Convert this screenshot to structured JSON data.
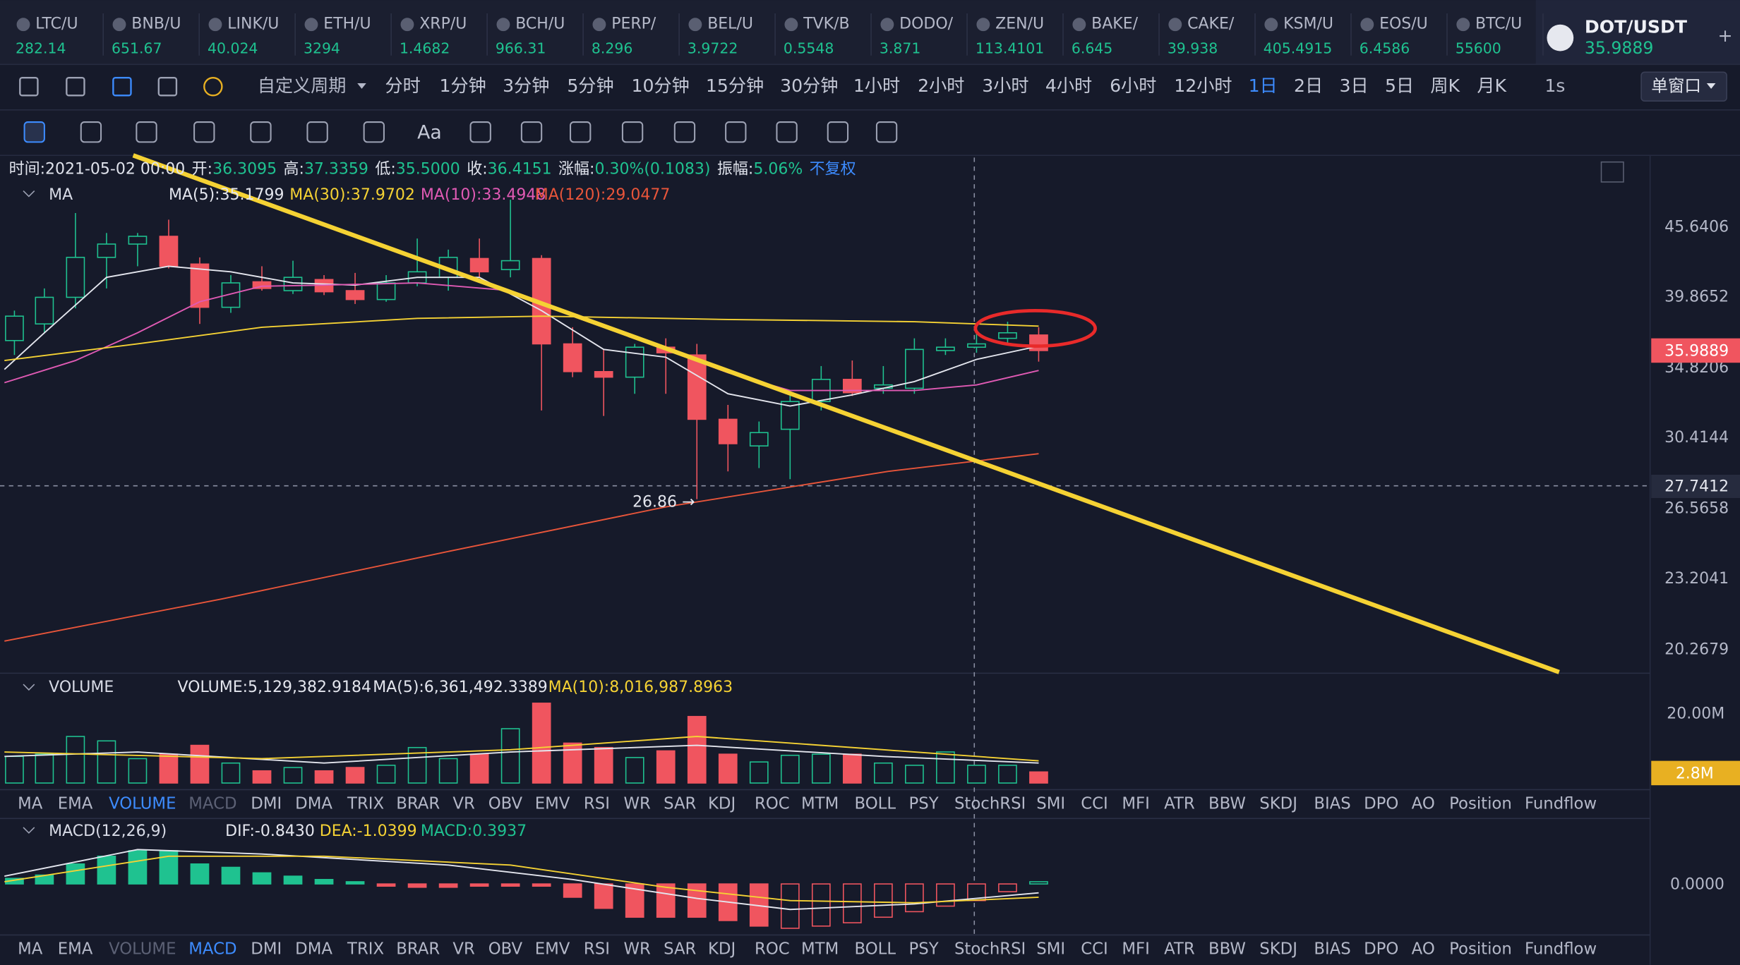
{
  "header": {
    "symbol": "DOT/USDT",
    "price": "35.9889"
  },
  "tickers": [
    {
      "name": "LTC/U",
      "price": "282.14"
    },
    {
      "name": "BNB/U",
      "price": "651.67"
    },
    {
      "name": "LINK/U",
      "price": "40.024"
    },
    {
      "name": "ETH/U",
      "price": "3294"
    },
    {
      "name": "XRP/U",
      "price": "1.4682"
    },
    {
      "name": "BCH/U",
      "price": "966.31"
    },
    {
      "name": "PERP/",
      "price": "8.296"
    },
    {
      "name": "BEL/U",
      "price": "3.9722"
    },
    {
      "name": "TVK/B",
      "price": "0.5548"
    },
    {
      "name": "DODO/",
      "price": "3.871"
    },
    {
      "name": "ZEN/U",
      "price": "113.4101"
    },
    {
      "name": "BAKE/",
      "price": "6.645"
    },
    {
      "name": "CAKE/",
      "price": "39.938"
    },
    {
      "name": "KSM/U",
      "price": "405.4915"
    },
    {
      "name": "EOS/U",
      "price": "6.4586"
    },
    {
      "name": "BTC/U",
      "price": "55600"
    }
  ],
  "timeframes": {
    "custom": "自定义周期",
    "items": [
      {
        "label": "分时"
      },
      {
        "label": "1分钟"
      },
      {
        "label": "3分钟"
      },
      {
        "label": "5分钟"
      },
      {
        "label": "10分钟"
      },
      {
        "label": "15分钟"
      },
      {
        "label": "30分钟"
      },
      {
        "label": "1小时"
      },
      {
        "label": "2小时"
      },
      {
        "label": "3小时"
      },
      {
        "label": "4小时"
      },
      {
        "label": "6小时"
      },
      {
        "label": "12小时"
      },
      {
        "label": "1日",
        "active": true
      },
      {
        "label": "2日"
      },
      {
        "label": "3日"
      },
      {
        "label": "5日"
      },
      {
        "label": "周K"
      },
      {
        "label": "月K"
      }
    ],
    "refresh": "1s",
    "window_mode": "单窗口"
  },
  "drawing_tools": {
    "text_tool": "Aa"
  },
  "info": {
    "time": "时间:2021-05-02 00:00",
    "open_label": "开:",
    "open": "36.3095",
    "high_label": "高:",
    "high": "37.3359",
    "low_label": "低:",
    "low": "35.5000",
    "close_label": "收:",
    "close": "36.4151",
    "change_label": "涨幅:",
    "change": "0.30%(0.1083)",
    "amplitude_label": "振幅:",
    "amplitude": "5.06%",
    "adjust": "不复权"
  },
  "ma_legend": {
    "name": "MA",
    "ma5": "MA(5):35.1799",
    "ma30": "MA(30):37.9702",
    "ma10": "MA(10):33.4948",
    "ma120": "MA(120):29.0477"
  },
  "price_axis": [
    "45.6406",
    "39.8652",
    "34.8206",
    "30.4144",
    "26.5658",
    "23.2041",
    "20.2679"
  ],
  "price_tags": {
    "current": "35.9889",
    "cursor": "27.7412"
  },
  "low_marker": "26.86 →",
  "volume_legend": {
    "name": "VOLUME",
    "volume": "VOLUME:5,129,382.9184",
    "ma5": "MA(5):6,361,492.3389",
    "ma10": "MA(10):8,016,987.8963"
  },
  "volume_axis": "20.00M",
  "volume_tag": "2.8M",
  "indicator_tabs": [
    "MA",
    "EMA",
    "VOLUME",
    "MACD",
    "DMI",
    "DMA",
    "TRIX",
    "BRAR",
    "VR",
    "OBV",
    "EMV",
    "RSI",
    "WR",
    "SAR",
    "KDJ",
    "ROC",
    "MTM",
    "BOLL",
    "PSY",
    "StochRSI",
    "SMI",
    "CCI",
    "MFI",
    "ATR",
    "BBW",
    "SKDJ",
    "BIAS",
    "DPO",
    "AO",
    "Position",
    "Fundflow"
  ],
  "macd_legend": {
    "name": "MACD(12,26,9)",
    "dif": "DIF:-0.8430",
    "dea": "DEA:-1.0399",
    "macd": "MACD:0.3937"
  },
  "macd_axis": "0.0000"
}
